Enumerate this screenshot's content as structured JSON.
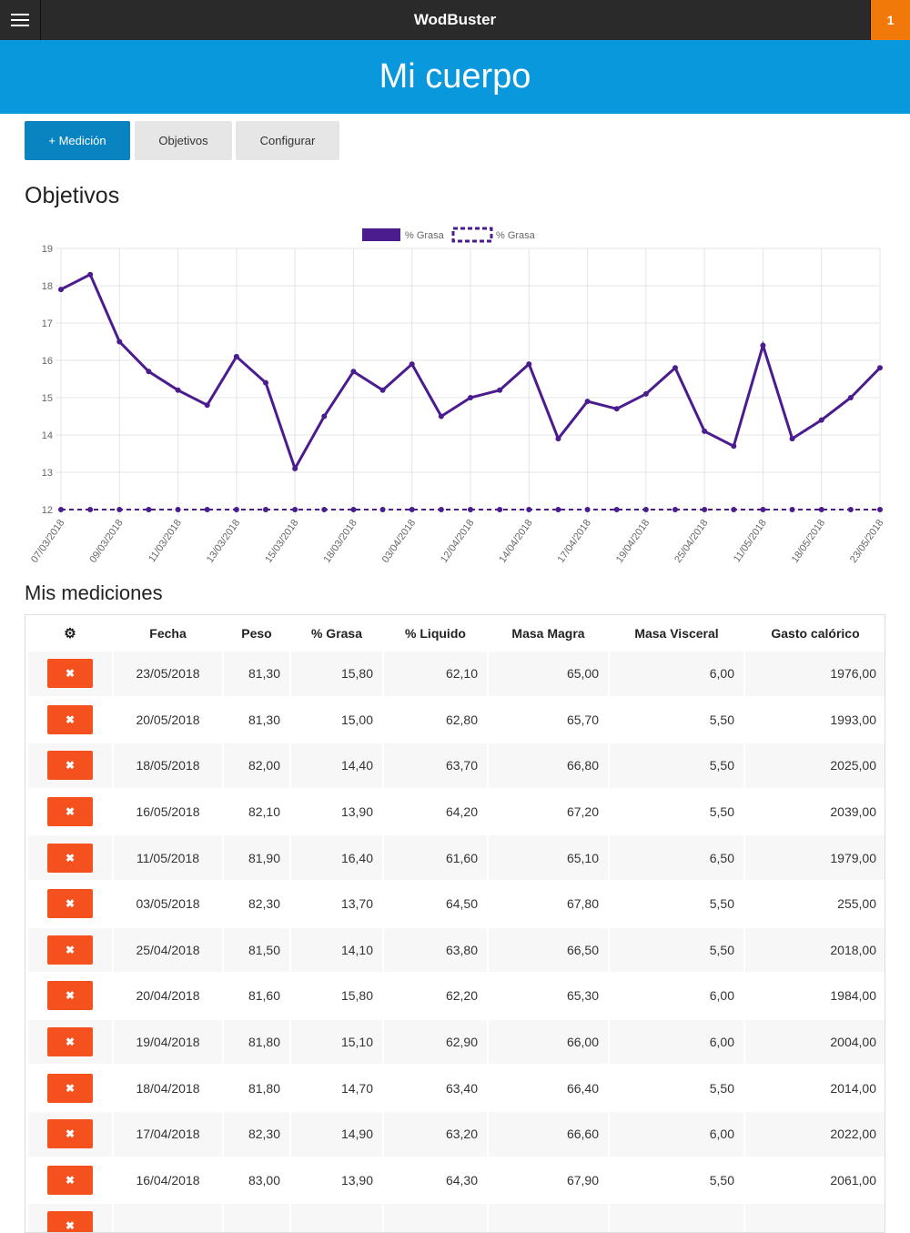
{
  "app": {
    "title": "WodBuster",
    "notification_count": "1"
  },
  "page": {
    "title": "Mi cuerpo"
  },
  "toolbar": {
    "add_label": "+ Medición",
    "objectives_label": "Objetivos",
    "configure_label": "Configurar"
  },
  "sections": {
    "objectives": "Objetivos",
    "measurements": "Mis mediciones"
  },
  "colors": {
    "series": "#4b1c8e",
    "accent": "#0a98dc",
    "danger": "#f4511e",
    "notification": "#f0790a"
  },
  "chart_data": {
    "type": "line",
    "legend": [
      "% Grasa",
      "% Grasa"
    ],
    "legend_position": "top",
    "ylim": [
      12,
      19
    ],
    "yticks": [
      12,
      13,
      14,
      15,
      16,
      17,
      18,
      19
    ],
    "x_tick_labels": [
      "07/03/2018",
      "09/03/2018",
      "11/03/2018",
      "13/03/2018",
      "15/03/2018",
      "18/03/2018",
      "03/04/2018",
      "12/04/2018",
      "14/04/2018",
      "17/04/2018",
      "19/04/2018",
      "25/04/2018",
      "11/05/2018",
      "18/05/2018",
      "23/05/2018"
    ],
    "grid": true,
    "series": [
      {
        "name": "% Grasa",
        "style": "solid",
        "values": [
          17.9,
          18.3,
          16.5,
          15.7,
          15.2,
          14.8,
          16.1,
          15.4,
          13.1,
          14.5,
          15.7,
          15.2,
          15.9,
          14.5,
          15.0,
          15.2,
          15.9,
          13.9,
          14.9,
          14.7,
          15.1,
          15.8,
          14.1,
          13.7,
          16.4,
          13.9,
          14.4,
          15.0,
          15.8
        ]
      },
      {
        "name": "% Grasa",
        "style": "dashed",
        "values": [
          12,
          12,
          12,
          12,
          12,
          12,
          12,
          12,
          12,
          12,
          12,
          12,
          12,
          12,
          12,
          12,
          12,
          12,
          12,
          12,
          12,
          12,
          12,
          12,
          12,
          12,
          12,
          12,
          12
        ]
      }
    ]
  },
  "table": {
    "columns": [
      "",
      "Fecha",
      "Peso",
      "% Grasa",
      "% Liquido",
      "Masa Magra",
      "Masa Visceral",
      "Gasto calórico"
    ],
    "delete_label": "✖",
    "rows": [
      [
        "23/05/2018",
        "81,30",
        "15,80",
        "62,10",
        "65,00",
        "6,00",
        "1976,00"
      ],
      [
        "20/05/2018",
        "81,30",
        "15,00",
        "62,80",
        "65,70",
        "5,50",
        "1993,00"
      ],
      [
        "18/05/2018",
        "82,00",
        "14,40",
        "63,70",
        "66,80",
        "5,50",
        "2025,00"
      ],
      [
        "16/05/2018",
        "82,10",
        "13,90",
        "64,20",
        "67,20",
        "5,50",
        "2039,00"
      ],
      [
        "11/05/2018",
        "81,90",
        "16,40",
        "61,60",
        "65,10",
        "6,50",
        "1979,00"
      ],
      [
        "03/05/2018",
        "82,30",
        "13,70",
        "64,50",
        "67,80",
        "5,50",
        "255,00"
      ],
      [
        "25/04/2018",
        "81,50",
        "14,10",
        "63,80",
        "66,50",
        "5,50",
        "2018,00"
      ],
      [
        "20/04/2018",
        "81,60",
        "15,80",
        "62,20",
        "65,30",
        "6,00",
        "1984,00"
      ],
      [
        "19/04/2018",
        "81,80",
        "15,10",
        "62,90",
        "66,00",
        "6,00",
        "2004,00"
      ],
      [
        "18/04/2018",
        "81,80",
        "14,70",
        "63,40",
        "66,40",
        "5,50",
        "2014,00"
      ],
      [
        "17/04/2018",
        "82,30",
        "14,90",
        "63,20",
        "66,60",
        "6,00",
        "2022,00"
      ],
      [
        "16/04/2018",
        "83,00",
        "13,90",
        "64,30",
        "67,90",
        "5,50",
        "2061,00"
      ],
      [
        "",
        "",
        "",
        "",
        "",
        "",
        ""
      ]
    ]
  }
}
